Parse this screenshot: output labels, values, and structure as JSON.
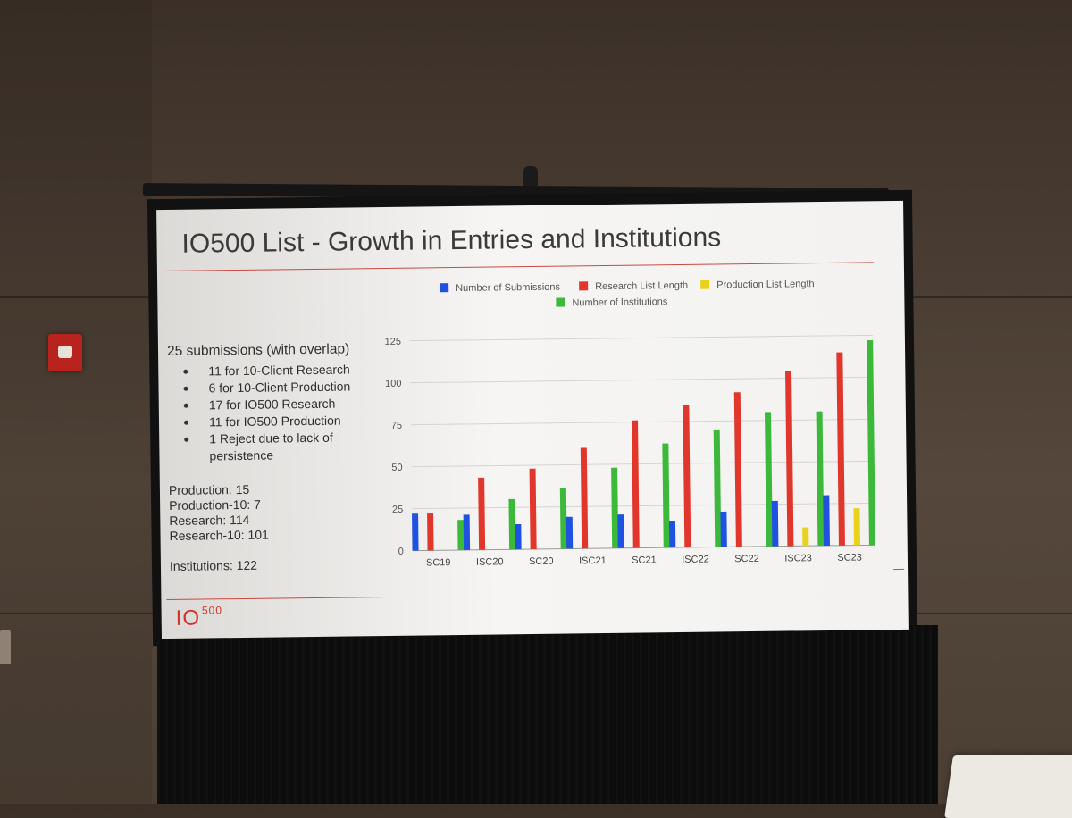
{
  "slide": {
    "title": "IO500 List - Growth in Entries and Institutions",
    "heading": "25 submissions (with overlap)",
    "bullets": [
      "11 for 10-Client Research",
      "6 for 10-Client Production",
      "17 for IO500 Research",
      "11 for IO500 Production",
      "1 Reject due to lack of persistence"
    ],
    "stats": {
      "production": "Production: 15",
      "production10": "Production-10: 7",
      "research": "Research: 114",
      "research10": "Research-10: 101",
      "institutions": "Institutions: 122"
    },
    "logo": {
      "main": "IO",
      "sup": "500"
    }
  },
  "colors": {
    "submissions": "#1f52e0",
    "research": "#e0362c",
    "production": "#e8d21c",
    "institutions": "#3cb83a",
    "accent": "#c94a44"
  },
  "chart_data": {
    "type": "bar",
    "categories": [
      "SC19",
      "ISC20",
      "SC20",
      "ISC21",
      "SC21",
      "ISC22",
      "SC22",
      "ISC23",
      "SC23"
    ],
    "series": [
      {
        "name": "Number of Submissions",
        "color": "#1f52e0",
        "values": [
          22,
          21,
          15,
          19,
          20,
          16,
          21,
          27,
          30
        ]
      },
      {
        "name": "Research List Length",
        "color": "#e0362c",
        "values": [
          22,
          43,
          48,
          60,
          76,
          85,
          92,
          104,
          115
        ]
      },
      {
        "name": "Production List Length",
        "color": "#e8d21c",
        "values": [
          0,
          0,
          0,
          0,
          0,
          0,
          0,
          11,
          22
        ]
      },
      {
        "name": "Number of Institutions",
        "color": "#3cb83a",
        "values": [
          18,
          30,
          36,
          48,
          62,
          70,
          80,
          80,
          122
        ]
      }
    ],
    "ylim": [
      0,
      125
    ],
    "yticks": [
      0,
      25,
      50,
      75,
      100,
      125
    ],
    "grid": true,
    "legend": "top"
  }
}
